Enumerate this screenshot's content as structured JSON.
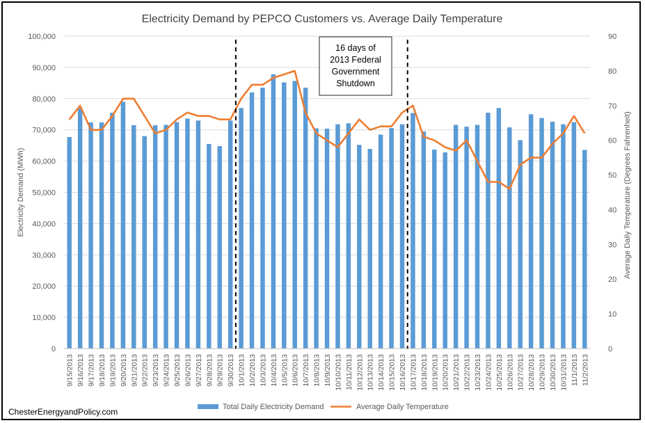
{
  "chart_data": {
    "type": "bar+line",
    "title": "Electricity Demand by PEPCO Customers  vs. Average Daily Temperature",
    "ylabel_left": "Electricity Demand (MWh)",
    "ylabel_right": "Average Daily Temperature (Degrees Fahrenheit)",
    "ylim_left": [
      0,
      100000
    ],
    "ylim_right": [
      0,
      90
    ],
    "yticks_left": [
      "0",
      "10,000",
      "20,000",
      "30,000",
      "40,000",
      "50,000",
      "60,000",
      "70,000",
      "80,000",
      "90,000",
      "100,000"
    ],
    "yticks_right": [
      "0",
      "10",
      "20",
      "30",
      "40",
      "50",
      "60",
      "70",
      "80",
      "90"
    ],
    "grid": true,
    "legend_position": "bottom",
    "categories": [
      "9/15/2013",
      "9/16/2013",
      "9/17/2013",
      "9/18/2013",
      "9/19/2013",
      "9/20/2013",
      "9/21/2013",
      "9/22/2013",
      "9/23/2013",
      "9/24/2013",
      "9/25/2013",
      "9/26/2013",
      "9/27/2013",
      "9/28/2013",
      "9/29/2013",
      "9/30/2013",
      "10/1/2013",
      "10/2/2013",
      "10/3/2013",
      "10/4/2013",
      "10/5/2013",
      "10/6/2013",
      "10/7/2013",
      "10/8/2013",
      "10/9/2013",
      "10/10/2013",
      "10/11/2013",
      "10/12/2013",
      "10/13/2013",
      "10/14/2013",
      "10/15/2013",
      "10/16/2013",
      "10/17/2013",
      "10/18/2013",
      "10/19/2013",
      "10/20/2013",
      "10/21/2013",
      "10/22/2013",
      "10/23/2013",
      "10/24/2013",
      "10/25/2013",
      "10/26/2013",
      "10/27/2013",
      "10/28/2013",
      "10/29/2013",
      "10/30/2013",
      "10/31/2013",
      "11/1/2013",
      "11/2/2013"
    ],
    "series": [
      {
        "name": "Total Daily Electricity Demand",
        "type": "bar",
        "axis": "left",
        "color": "#5b9bd5",
        "values": [
          67700,
          77000,
          72400,
          72400,
          75500,
          79000,
          71500,
          68000,
          71500,
          71600,
          72500,
          73600,
          73000,
          65500,
          64800,
          73000,
          77000,
          82000,
          83500,
          87800,
          85200,
          85700,
          83500,
          70500,
          70400,
          71800,
          72100,
          65200,
          63900,
          68500,
          70600,
          71800,
          75400,
          69500,
          63700,
          62800,
          71600,
          71000,
          71600,
          75500,
          77000,
          70800,
          66700,
          75000,
          73800,
          72600,
          71800,
          72500,
          63600
        ]
      },
      {
        "name": "Average Daily Temperature",
        "type": "line",
        "axis": "right",
        "color": "#ed7d31",
        "values": [
          66,
          70,
          63,
          63,
          67,
          72,
          72,
          67,
          62,
          63,
          66,
          68,
          67,
          67,
          66,
          66,
          72,
          76,
          76,
          78,
          79,
          80,
          68,
          62,
          60,
          58,
          62,
          66,
          63,
          64,
          64,
          68,
          70,
          61,
          60,
          58,
          57,
          60,
          54,
          48,
          48,
          46,
          53,
          55,
          55,
          59,
          62,
          67,
          62
        ]
      }
    ],
    "annotation": {
      "text_lines": [
        "16 days of",
        "2013 Federal",
        "Government",
        "Shutdown"
      ],
      "start_category": "9/30/2013",
      "end_category": "10/16/2013"
    }
  },
  "credit": "ChesterEnergyandPolicy.com"
}
